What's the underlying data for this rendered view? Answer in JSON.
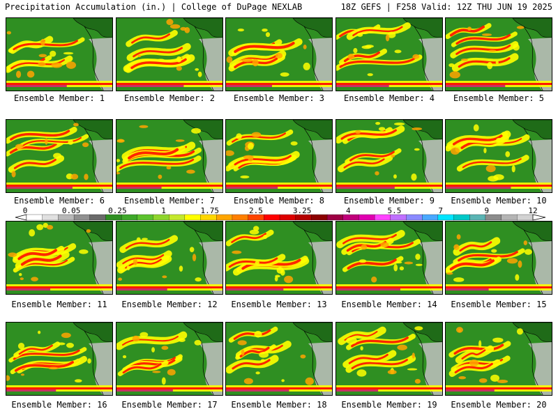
{
  "header": {
    "left": "Precipitation Accumulation (in.) | College of DuPage NEXLAB",
    "right": "18Z GEFS | F258 Valid: 12Z THU JUN 19 2025"
  },
  "caption_prefix": "Ensemble Member: ",
  "members": [
    1,
    2,
    3,
    4,
    5,
    6,
    7,
    8,
    9,
    10,
    11,
    12,
    13,
    14,
    15,
    16,
    17,
    18,
    19,
    20
  ],
  "colorbar": {
    "labels": [
      "0",
      "0.05",
      "0.25",
      "1",
      "1.75",
      "2.5",
      "3.25",
      "4",
      "5.5",
      "7",
      "9",
      "12"
    ],
    "colors": [
      "#ffffff",
      "#e0e0e0",
      "#b8b8b8",
      "#909090",
      "#6a6a6a",
      "#2f8f22",
      "#3ea82a",
      "#5cc22e",
      "#8fd52e",
      "#c4e82e",
      "#ffff00",
      "#ffd700",
      "#ffa500",
      "#ff7f00",
      "#ff4500",
      "#ff0000",
      "#dd0000",
      "#b40000",
      "#8b0000",
      "#9e0044",
      "#c0007a",
      "#e000b0",
      "#ff44ff",
      "#c070ff",
      "#8a8aff",
      "#4aa8ff",
      "#00e5ff",
      "#00c8c8",
      "#5ab4b4",
      "#8c8c8c",
      "#b4b4b4",
      "#d2d2d2"
    ]
  },
  "colors": {
    "background_field": "#2f8f22",
    "land": "#1f6b18",
    "dry": "#bfbfbf",
    "moist": "#ffff00",
    "heavy": "#ff0000",
    "very_heavy": "#c0007a"
  }
}
